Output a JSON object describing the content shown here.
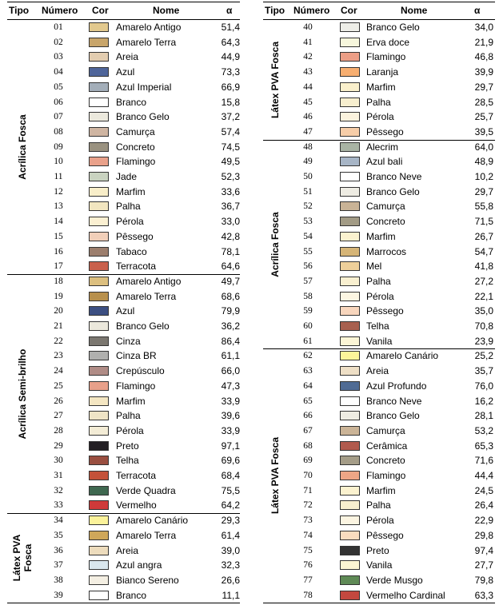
{
  "header": {
    "tipo": "Tipo",
    "numero": "Número",
    "cor": "Cor",
    "nome": "Nome",
    "alpha": "α"
  },
  "left": {
    "groups": [
      {
        "label": "Acrílica Fosca",
        "rows": [
          {
            "n": "01",
            "name": "Amarelo Antigo",
            "a": "51,4",
            "c": "#e2c98e"
          },
          {
            "n": "02",
            "name": "Amarelo Terra",
            "a": "64,3",
            "c": "#c8a56a"
          },
          {
            "n": "03",
            "name": "Areia",
            "a": "44,9",
            "c": "#e3cdb0"
          },
          {
            "n": "04",
            "name": "Azul",
            "a": "73,3",
            "c": "#4f659a"
          },
          {
            "n": "05",
            "name": "Azul Imperial",
            "a": "66,9",
            "c": "#a3aeb9"
          },
          {
            "n": "06",
            "name": "Branco",
            "a": "15,8",
            "c": "#ffffff"
          },
          {
            "n": "07",
            "name": "Branco Gelo",
            "a": "37,2",
            "c": "#ece9dd"
          },
          {
            "n": "08",
            "name": "Camurça",
            "a": "57,4",
            "c": "#cfb5a2"
          },
          {
            "n": "09",
            "name": "Concreto",
            "a": "74,5",
            "c": "#9a9280"
          },
          {
            "n": "10",
            "name": "Flamingo",
            "a": "49,5",
            "c": "#e9a18a"
          },
          {
            "n": "11",
            "name": "Jade",
            "a": "52,3",
            "c": "#c9d3c0"
          },
          {
            "n": "12",
            "name": "Marfim",
            "a": "33,6",
            "c": "#f8eec9"
          },
          {
            "n": "13",
            "name": "Palha",
            "a": "36,7",
            "c": "#f2e6c0"
          },
          {
            "n": "14",
            "name": "Pérola",
            "a": "33,0",
            "c": "#fbf0d2"
          },
          {
            "n": "15",
            "name": "Pêssego",
            "a": "42,8",
            "c": "#f1cfb9"
          },
          {
            "n": "16",
            "name": "Tabaco",
            "a": "78,1",
            "c": "#9c7e6d"
          },
          {
            "n": "17",
            "name": "Terracota",
            "a": "64,6",
            "c": "#c9604c"
          }
        ]
      },
      {
        "label": "Acrílica Semi-brilho",
        "rows": [
          {
            "n": "18",
            "name": "Amarelo Antigo",
            "a": "49,7",
            "c": "#dcbf7f"
          },
          {
            "n": "19",
            "name": "Amarelo Terra",
            "a": "68,6",
            "c": "#b8904c"
          },
          {
            "n": "20",
            "name": "Azul",
            "a": "79,9",
            "c": "#3c4f82"
          },
          {
            "n": "21",
            "name": "Branco Gelo",
            "a": "36,2",
            "c": "#ebe8dc"
          },
          {
            "n": "22",
            "name": "Cinza",
            "a": "86,4",
            "c": "#7b7770"
          },
          {
            "n": "23",
            "name": "Cinza BR",
            "a": "61,1",
            "c": "#b0b0ae"
          },
          {
            "n": "24",
            "name": "Crepúsculo",
            "a": "66,0",
            "c": "#b08c86"
          },
          {
            "n": "25",
            "name": "Flamingo",
            "a": "47,3",
            "c": "#e8a08a"
          },
          {
            "n": "26",
            "name": "Marfim",
            "a": "33,9",
            "c": "#f4e6c2"
          },
          {
            "n": "27",
            "name": "Palha",
            "a": "39,6",
            "c": "#efe4c6"
          },
          {
            "n": "28",
            "name": "Pérola",
            "a": "33,9",
            "c": "#f3ecd6"
          },
          {
            "n": "29",
            "name": "Preto",
            "a": "97,1",
            "c": "#231f24"
          },
          {
            "n": "30",
            "name": "Telha",
            "a": "69,6",
            "c": "#9a4f40"
          },
          {
            "n": "31",
            "name": "Terracota",
            "a": "68,4",
            "c": "#c4523a"
          },
          {
            "n": "32",
            "name": "Verde Quadra",
            "a": "75,5",
            "c": "#3f6850"
          },
          {
            "n": "33",
            "name": "Vermelho",
            "a": "64,2",
            "c": "#cf3a3a"
          }
        ]
      },
      {
        "label": "Látex PVA Fosca",
        "rows": [
          {
            "n": "34",
            "name": "Amarelo Canário",
            "a": "29,3",
            "c": "#fbf29a"
          },
          {
            "n": "35",
            "name": "Amarelo Terra",
            "a": "61,4",
            "c": "#cfa75a"
          },
          {
            "n": "36",
            "name": "Areia",
            "a": "39,0",
            "c": "#eddcbd"
          },
          {
            "n": "37",
            "name": "Azul angra",
            "a": "32,3",
            "c": "#d9e7ee"
          },
          {
            "n": "38",
            "name": "Bianco Sereno",
            "a": "26,6",
            "c": "#f4efe3"
          },
          {
            "n": "39",
            "name": "Branco",
            "a": "11,1",
            "c": "#ffffff"
          }
        ]
      }
    ]
  },
  "right": {
    "groups": [
      {
        "label": "Látex PVA Fosca",
        "rows": [
          {
            "n": "40",
            "name": "Branco Gelo",
            "a": "34,0",
            "c": "#eeeee8"
          },
          {
            "n": "41",
            "name": "Erva doce",
            "a": "21,9",
            "c": "#f6f6dc"
          },
          {
            "n": "42",
            "name": "Flamingo",
            "a": "46,8",
            "c": "#ec9e86"
          },
          {
            "n": "43",
            "name": "Laranja",
            "a": "39,9",
            "c": "#f7ae70"
          },
          {
            "n": "44",
            "name": "Marfim",
            "a": "29,7",
            "c": "#faf0cc"
          },
          {
            "n": "45",
            "name": "Palha",
            "a": "28,5",
            "c": "#f7efcf"
          },
          {
            "n": "46",
            "name": "Pérola",
            "a": "25,7",
            "c": "#fbf3de"
          },
          {
            "n": "47",
            "name": "Pêssego",
            "a": "39,5",
            "c": "#f6cda8"
          }
        ]
      },
      {
        "label": "Acrílica Fosca",
        "rows": [
          {
            "n": "48",
            "name": "Alecrim",
            "a": "64,0",
            "c": "#a9b4a4"
          },
          {
            "n": "49",
            "name": "Azul bali",
            "a": "48,9",
            "c": "#a7b5c6"
          },
          {
            "n": "50",
            "name": "Branco Neve",
            "a": "10,2",
            "c": "#ffffff"
          },
          {
            "n": "51",
            "name": "Branco Gelo",
            "a": "29,7",
            "c": "#eeece3"
          },
          {
            "n": "52",
            "name": "Camurça",
            "a": "55,8",
            "c": "#c9b396"
          },
          {
            "n": "53",
            "name": "Concreto",
            "a": "71,5",
            "c": "#a29b85"
          },
          {
            "n": "54",
            "name": "Marfim",
            "a": "26,7",
            "c": "#fbf2cf"
          },
          {
            "n": "55",
            "name": "Marrocos",
            "a": "54,7",
            "c": "#d6b577"
          },
          {
            "n": "56",
            "name": "Mel",
            "a": "41,8",
            "c": "#eed09a"
          },
          {
            "n": "57",
            "name": "Palha",
            "a": "27,2",
            "c": "#f9f0d0"
          },
          {
            "n": "58",
            "name": "Pérola",
            "a": "22,1",
            "c": "#fcf6e2"
          },
          {
            "n": "59",
            "name": "Pêssego",
            "a": "35,0",
            "c": "#f8d6bd"
          },
          {
            "n": "60",
            "name": "Telha",
            "a": "70,8",
            "c": "#a8604f"
          },
          {
            "n": "61",
            "name": "Vanila",
            "a": "23,9",
            "c": "#fbf5d6"
          }
        ]
      },
      {
        "label": "Látex PVA Fosca",
        "rows": [
          {
            "n": "62",
            "name": "Amarelo Canário",
            "a": "25,2",
            "c": "#fcf49a"
          },
          {
            "n": "63",
            "name": "Areia",
            "a": "35,7",
            "c": "#eedfc6"
          },
          {
            "n": "64",
            "name": "Azul Profundo",
            "a": "76,0",
            "c": "#4f6b94"
          },
          {
            "n": "65",
            "name": "Branco Neve",
            "a": "16,2",
            "c": "#ffffff"
          },
          {
            "n": "66",
            "name": "Branco Gelo",
            "a": "28,1",
            "c": "#eeece2"
          },
          {
            "n": "67",
            "name": "Camurça",
            "a": "53,2",
            "c": "#cbb497"
          },
          {
            "n": "68",
            "name": "Cerâmica",
            "a": "65,3",
            "c": "#b15a4d"
          },
          {
            "n": "69",
            "name": "Concreto",
            "a": "71,6",
            "c": "#a59d88"
          },
          {
            "n": "70",
            "name": "Flamingo",
            "a": "44,4",
            "c": "#eea686"
          },
          {
            "n": "71",
            "name": "Marfim",
            "a": "24,5",
            "c": "#fbf2cf"
          },
          {
            "n": "72",
            "name": "Palha",
            "a": "26,4",
            "c": "#f8efcf"
          },
          {
            "n": "73",
            "name": "Pérola",
            "a": "22,9",
            "c": "#fcf5e2"
          },
          {
            "n": "74",
            "name": "Pêssego",
            "a": "29,8",
            "c": "#fadcbf"
          },
          {
            "n": "75",
            "name": "Preto",
            "a": "97,4",
            "c": "#333333"
          },
          {
            "n": "76",
            "name": "Vanila",
            "a": "27,7",
            "c": "#fbf5d2"
          },
          {
            "n": "77",
            "name": "Verde Musgo",
            "a": "79,8",
            "c": "#5f8a56"
          },
          {
            "n": "78",
            "name": "Vermelho Cardinal",
            "a": "63,3",
            "c": "#c3483f"
          }
        ]
      }
    ]
  }
}
